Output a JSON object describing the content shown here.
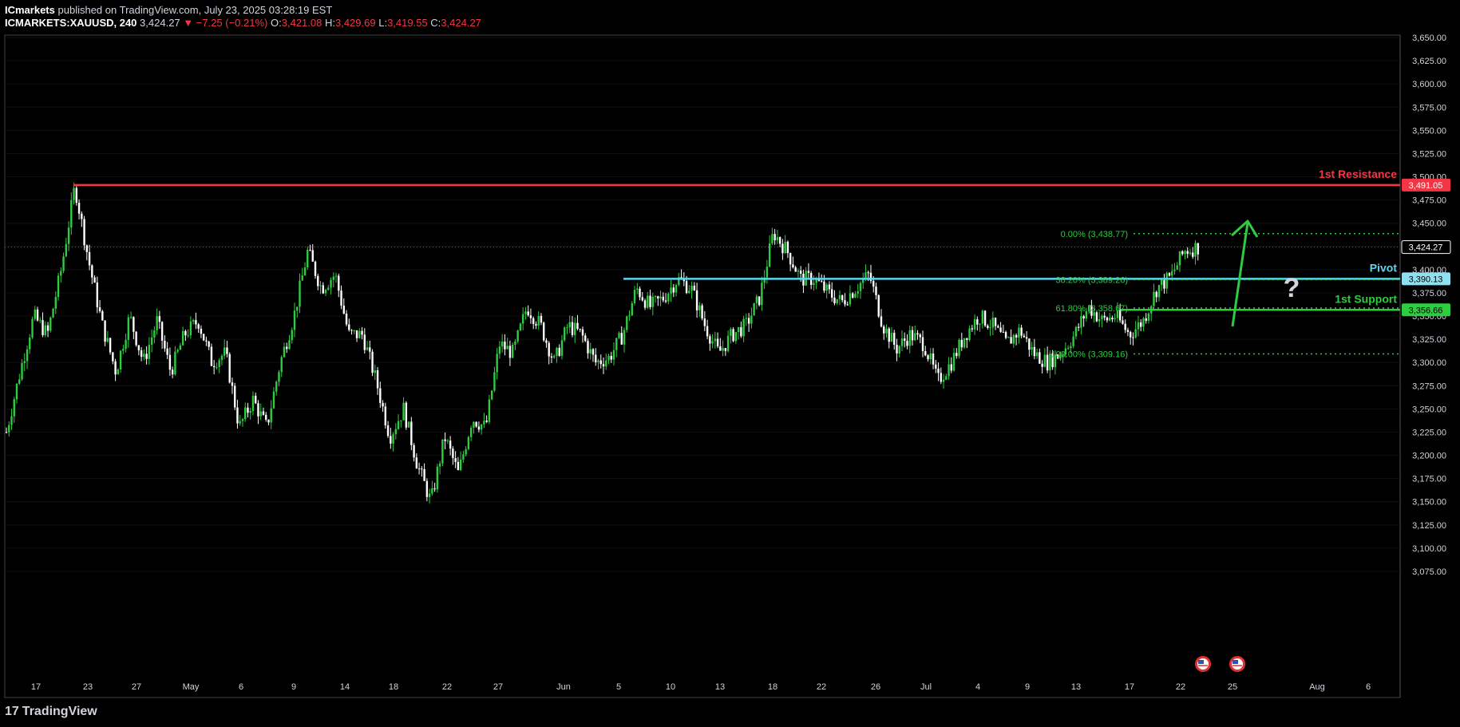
{
  "header": {
    "publisher": "ICmarkets",
    "published_text": "published on TradingView.com, July 23, 2025 03:28:19 EST",
    "symbol": "ICMARKETS:XAUUSD, 240",
    "last": "3,424.27",
    "change": "▼ −7.25 (−0.21%)",
    "o_label": "O:",
    "o_val": "3,421.08",
    "h_label": "H:",
    "h_val": "3,429.69",
    "l_label": "L:",
    "l_val": "3,419.55",
    "c_label": "C:",
    "c_val": "3,424.27"
  },
  "footer": {
    "brand": "TradingView",
    "brand_mark": "17"
  },
  "chart_data": {
    "type": "candlestick",
    "symbol": "XAUUSD",
    "timeframe": "240",
    "ylim": [
      3060,
      3660
    ],
    "y_ticks": [
      "3,650.00",
      "3,625.00",
      "3,600.00",
      "3,575.00",
      "3,550.00",
      "3,525.00",
      "3,500.00",
      "3,475.00",
      "3,450.00",
      "3,425.00",
      "3,400.00",
      "3,375.00",
      "3,350.00",
      "3,325.00",
      "3,300.00",
      "3,275.00",
      "3,250.00",
      "3,225.00",
      "3,200.00",
      "3,175.00",
      "3,150.00",
      "3,125.00",
      "3,100.00",
      "3,075.00"
    ],
    "x_ticks": [
      "17",
      "23",
      "27",
      "May",
      "6",
      "9",
      "14",
      "18",
      "22",
      "27",
      "Jun",
      "5",
      "10",
      "13",
      "18",
      "22",
      "26",
      "Jul",
      "4",
      "9",
      "13",
      "17",
      "22",
      "25",
      "Aug",
      "6"
    ],
    "price_path": [
      [
        0,
        3225
      ],
      [
        2,
        3290
      ],
      [
        4,
        3350
      ],
      [
        6,
        3330
      ],
      [
        8,
        3400
      ],
      [
        10,
        3490
      ],
      [
        12,
        3410
      ],
      [
        14,
        3340
      ],
      [
        16,
        3290
      ],
      [
        18,
        3350
      ],
      [
        20,
        3300
      ],
      [
        22,
        3345
      ],
      [
        24,
        3290
      ],
      [
        26,
        3330
      ],
      [
        28,
        3345
      ],
      [
        30,
        3300
      ],
      [
        32,
        3310
      ],
      [
        34,
        3230
      ],
      [
        36,
        3260
      ],
      [
        38,
        3230
      ],
      [
        40,
        3300
      ],
      [
        42,
        3350
      ],
      [
        44,
        3420
      ],
      [
        46,
        3380
      ],
      [
        48,
        3395
      ],
      [
        50,
        3330
      ],
      [
        52,
        3330
      ],
      [
        54,
        3280
      ],
      [
        56,
        3220
      ],
      [
        58,
        3250
      ],
      [
        60,
        3190
      ],
      [
        62,
        3150
      ],
      [
        64,
        3220
      ],
      [
        66,
        3180
      ],
      [
        68,
        3240
      ],
      [
        70,
        3230
      ],
      [
        72,
        3320
      ],
      [
        74,
        3310
      ],
      [
        76,
        3360
      ],
      [
        78,
        3340
      ],
      [
        80,
        3300
      ],
      [
        82,
        3340
      ],
      [
        84,
        3330
      ],
      [
        86,
        3300
      ],
      [
        88,
        3305
      ],
      [
        90,
        3330
      ],
      [
        92,
        3380
      ],
      [
        94,
        3360
      ],
      [
        96,
        3370
      ],
      [
        98,
        3390
      ],
      [
        100,
        3380
      ],
      [
        102,
        3340
      ],
      [
        104,
        3310
      ],
      [
        106,
        3330
      ],
      [
        108,
        3340
      ],
      [
        110,
        3370
      ],
      [
        112,
        3440
      ],
      [
        114,
        3420
      ],
      [
        116,
        3390
      ],
      [
        118,
        3390
      ],
      [
        120,
        3375
      ],
      [
        122,
        3365
      ],
      [
        124,
        3380
      ],
      [
        126,
        3395
      ],
      [
        128,
        3340
      ],
      [
        130,
        3315
      ],
      [
        132,
        3330
      ],
      [
        134,
        3320
      ],
      [
        136,
        3280
      ],
      [
        138,
        3300
      ],
      [
        140,
        3330
      ],
      [
        142,
        3350
      ],
      [
        144,
        3340
      ],
      [
        146,
        3320
      ],
      [
        148,
        3335
      ],
      [
        150,
        3310
      ],
      [
        152,
        3300
      ],
      [
        154,
        3310
      ],
      [
        156,
        3330
      ],
      [
        158,
        3360
      ],
      [
        160,
        3345
      ],
      [
        162,
        3350
      ],
      [
        164,
        3330
      ],
      [
        166,
        3345
      ],
      [
        168,
        3380
      ],
      [
        170,
        3392
      ],
      [
        172,
        3420
      ],
      [
        174,
        3424.27
      ]
    ],
    "levels": [
      {
        "name": "1st Resistance",
        "value": 3491.05,
        "label": "3,491.05",
        "color": "#f23645"
      },
      {
        "name": "Pivot",
        "value": 3390.13,
        "label": "3,390.13",
        "color": "#5ad6ef"
      },
      {
        "name": "1st Support",
        "value": 3356.66,
        "label": "3,356.66",
        "color": "#2ecc40"
      }
    ],
    "last_price": {
      "value": 3424.27,
      "label": "3,424.27"
    },
    "fibonacci": [
      {
        "label": "0.00% (3,438.77)",
        "value": 3438.77
      },
      {
        "label": "38.20% (3,389.26)",
        "value": 3389.26
      },
      {
        "label": "61.80% (3,358.67)",
        "value": 3358.67
      },
      {
        "label": "100.00% (3,309.16)",
        "value": 3309.16
      }
    ],
    "annotations": [
      "?"
    ],
    "event_icons": [
      "us-flag-icon",
      "us-flag-icon"
    ],
    "colors": {
      "up": "#2ecc40",
      "down": "#ffffff",
      "background": "#000000",
      "grid": "#1a1a1a",
      "axis_text": "#d1d4dc"
    }
  }
}
